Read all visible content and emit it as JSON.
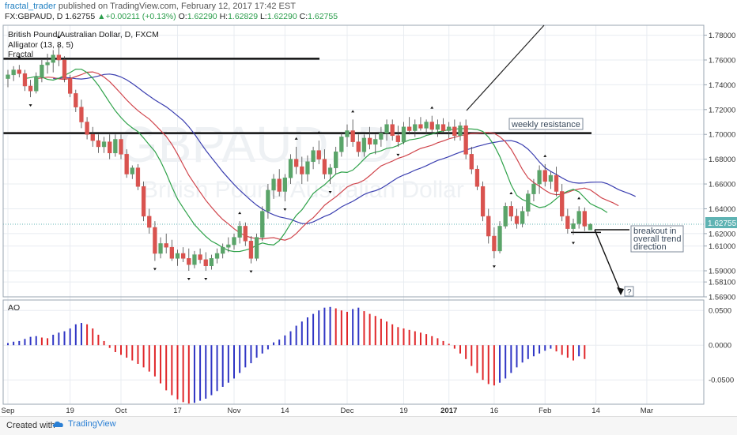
{
  "header": {
    "author": "fractal_trader",
    "published": " published on TradingView.com, February 12, 2017 17:42 EST",
    "symbol": "FX:GBPAUD, D",
    "last": "1.62755",
    "change": "+0.00211 (+0.13%)",
    "o_label": "O:",
    "o": "1.62290",
    "h_label": "H:",
    "h": "1.62829",
    "l_label": "L:",
    "l": "1.62290",
    "c_label": "C:",
    "c": "1.62755"
  },
  "legend": {
    "instrument": "British Pound/Australian Dollar, D, FXCM",
    "alligator": "Alligator (13, 8, 5)",
    "fractal": "Fractal",
    "ao": "AO"
  },
  "watermark": {
    "big": "GBPAUD, D",
    "small": "British Pound/Australian Dollar"
  },
  "annotations": {
    "weekly_resistance": "weekly resistance",
    "breakout_1": "breakout in",
    "breakout_2": "overall trend",
    "breakout_3": "direction",
    "question": "?"
  },
  "footer": {
    "created_with": "Created with",
    "brand": "TradingView"
  },
  "colors": {
    "bull": "#5aa469",
    "bear": "#d9534f",
    "jaw": "#3b3fb0",
    "teeth": "#d0454c",
    "lips": "#2fa24a",
    "ao_up": "#2f35c4",
    "ao_down": "#e0262a",
    "grid": "#e8ecf1",
    "price_line": "#5fb3b3"
  },
  "chart_data": [
    {
      "type": "candlestick",
      "title": "British Pound/Australian Dollar, D, FXCM",
      "ylim": [
        1.569,
        1.788
      ],
      "y_ticks": [
        "1.78000",
        "1.76000",
        "1.74000",
        "1.72000",
        "1.70000",
        "1.68000",
        "1.66000",
        "1.64000",
        "1.62000",
        "1.61000",
        "1.59000",
        "1.58100",
        "1.56900"
      ],
      "x_ticks": [
        "Sep",
        "19",
        "Oct",
        "17",
        "Nov",
        "14",
        "Dec",
        "19",
        "2017",
        "16",
        "Feb",
        "14",
        "Mar"
      ],
      "last_price": "1.62755",
      "horizontal_levels": [
        1.761,
        1.701,
        1.621
      ],
      "ohlc": [
        [
          1.745,
          1.752,
          1.738,
          1.748
        ],
        [
          1.748,
          1.755,
          1.743,
          1.752
        ],
        [
          1.752,
          1.756,
          1.746,
          1.749
        ],
        [
          1.749,
          1.752,
          1.735,
          1.739
        ],
        [
          1.739,
          1.744,
          1.73,
          1.735
        ],
        [
          1.735,
          1.75,
          1.733,
          1.746
        ],
        [
          1.746,
          1.76,
          1.742,
          1.756
        ],
        [
          1.756,
          1.765,
          1.749,
          1.758
        ],
        [
          1.758,
          1.768,
          1.75,
          1.764
        ],
        [
          1.764,
          1.772,
          1.755,
          1.76
        ],
        [
          1.76,
          1.763,
          1.742,
          1.745
        ],
        [
          1.745,
          1.748,
          1.73,
          1.733
        ],
        [
          1.733,
          1.736,
          1.718,
          1.722
        ],
        [
          1.722,
          1.728,
          1.705,
          1.71
        ],
        [
          1.71,
          1.714,
          1.696,
          1.7
        ],
        [
          1.7,
          1.706,
          1.69,
          1.695
        ],
        [
          1.695,
          1.7,
          1.685,
          1.69
        ],
        [
          1.69,
          1.698,
          1.685,
          1.694
        ],
        [
          1.694,
          1.7,
          1.68,
          1.685
        ],
        [
          1.685,
          1.7,
          1.682,
          1.696
        ],
        [
          1.696,
          1.7,
          1.68,
          1.684
        ],
        [
          1.684,
          1.688,
          1.665,
          1.668
        ],
        [
          1.668,
          1.675,
          1.664,
          1.673
        ],
        [
          1.673,
          1.676,
          1.655,
          1.658
        ],
        [
          1.658,
          1.662,
          1.63,
          1.634
        ],
        [
          1.634,
          1.64,
          1.62,
          1.625
        ],
        [
          1.625,
          1.63,
          1.598,
          1.604
        ],
        [
          1.604,
          1.617,
          1.6,
          1.612
        ],
        [
          1.612,
          1.62,
          1.604,
          1.609
        ],
        [
          1.609,
          1.615,
          1.598,
          1.6
        ],
        [
          1.6,
          1.607,
          1.594,
          1.604
        ],
        [
          1.604,
          1.609,
          1.597,
          1.6
        ],
        [
          1.6,
          1.608,
          1.59,
          1.595
        ],
        [
          1.595,
          1.606,
          1.592,
          1.603
        ],
        [
          1.603,
          1.608,
          1.596,
          1.599
        ],
        [
          1.599,
          1.605,
          1.59,
          1.594
        ],
        [
          1.594,
          1.603,
          1.591,
          1.6
        ],
        [
          1.6,
          1.608,
          1.596,
          1.604
        ],
        [
          1.604,
          1.612,
          1.6,
          1.609
        ],
        [
          1.609,
          1.617,
          1.605,
          1.611
        ],
        [
          1.611,
          1.62,
          1.607,
          1.617
        ],
        [
          1.617,
          1.63,
          1.612,
          1.626
        ],
        [
          1.626,
          1.629,
          1.61,
          1.614
        ],
        [
          1.614,
          1.618,
          1.596,
          1.6
        ],
        [
          1.6,
          1.62,
          1.598,
          1.617
        ],
        [
          1.617,
          1.642,
          1.614,
          1.638
        ],
        [
          1.638,
          1.66,
          1.632,
          1.655
        ],
        [
          1.655,
          1.668,
          1.648,
          1.664
        ],
        [
          1.664,
          1.672,
          1.65,
          1.654
        ],
        [
          1.654,
          1.668,
          1.646,
          1.665
        ],
        [
          1.665,
          1.684,
          1.66,
          1.68
        ],
        [
          1.68,
          1.69,
          1.668,
          1.674
        ],
        [
          1.674,
          1.682,
          1.66,
          1.668
        ],
        [
          1.668,
          1.683,
          1.662,
          1.678
        ],
        [
          1.678,
          1.69,
          1.672,
          1.687
        ],
        [
          1.687,
          1.695,
          1.676,
          1.68
        ],
        [
          1.68,
          1.688,
          1.664,
          1.668
        ],
        [
          1.668,
          1.676,
          1.66,
          1.673
        ],
        [
          1.673,
          1.69,
          1.668,
          1.686
        ],
        [
          1.686,
          1.702,
          1.682,
          1.698
        ],
        [
          1.698,
          1.708,
          1.69,
          1.703
        ],
        [
          1.703,
          1.712,
          1.69,
          1.694
        ],
        [
          1.694,
          1.7,
          1.682,
          1.686
        ],
        [
          1.686,
          1.7,
          1.682,
          1.697
        ],
        [
          1.697,
          1.706,
          1.688,
          1.692
        ],
        [
          1.692,
          1.7,
          1.684,
          1.696
        ],
        [
          1.696,
          1.706,
          1.69,
          1.701
        ],
        [
          1.701,
          1.712,
          1.695,
          1.708
        ],
        [
          1.708,
          1.712,
          1.695,
          1.699
        ],
        [
          1.699,
          1.707,
          1.69,
          1.694
        ],
        [
          1.694,
          1.71,
          1.692,
          1.706
        ],
        [
          1.706,
          1.714,
          1.7,
          1.703
        ],
        [
          1.703,
          1.712,
          1.698,
          1.708
        ],
        [
          1.708,
          1.714,
          1.703,
          1.705
        ],
        [
          1.705,
          1.712,
          1.7,
          1.71
        ],
        [
          1.71,
          1.715,
          1.702,
          1.704
        ],
        [
          1.704,
          1.712,
          1.698,
          1.708
        ],
        [
          1.708,
          1.713,
          1.702,
          1.703
        ],
        [
          1.703,
          1.71,
          1.697,
          1.706
        ],
        [
          1.706,
          1.712,
          1.695,
          1.699
        ],
        [
          1.699,
          1.71,
          1.695,
          1.707
        ],
        [
          1.707,
          1.712,
          1.68,
          1.684
        ],
        [
          1.684,
          1.69,
          1.668,
          1.672
        ],
        [
          1.672,
          1.675,
          1.655,
          1.658
        ],
        [
          1.658,
          1.662,
          1.63,
          1.634
        ],
        [
          1.634,
          1.64,
          1.612,
          1.618
        ],
        [
          1.618,
          1.625,
          1.6,
          1.606
        ],
        [
          1.606,
          1.63,
          1.604,
          1.626
        ],
        [
          1.626,
          1.645,
          1.624,
          1.642
        ],
        [
          1.642,
          1.646,
          1.63,
          1.634
        ],
        [
          1.634,
          1.64,
          1.624,
          1.628
        ],
        [
          1.628,
          1.642,
          1.625,
          1.638
        ],
        [
          1.638,
          1.655,
          1.634,
          1.652
        ],
        [
          1.652,
          1.664,
          1.646,
          1.66
        ],
        [
          1.66,
          1.675,
          1.652,
          1.671
        ],
        [
          1.671,
          1.676,
          1.658,
          1.662
        ],
        [
          1.662,
          1.67,
          1.656,
          1.667
        ],
        [
          1.667,
          1.674,
          1.65,
          1.654
        ],
        [
          1.654,
          1.66,
          1.63,
          1.634
        ],
        [
          1.634,
          1.64,
          1.62,
          1.624
        ],
        [
          1.624,
          1.632,
          1.619,
          1.628
        ],
        [
          1.628,
          1.642,
          1.624,
          1.638
        ],
        [
          1.638,
          1.641,
          1.622,
          1.626
        ],
        [
          1.6229,
          1.62829,
          1.6229,
          1.62755
        ]
      ]
    },
    {
      "type": "bar",
      "title": "AO",
      "ylim": [
        -0.085,
        0.065
      ],
      "y_ticks": [
        "0.0500",
        "0.0000",
        "-0.0500"
      ],
      "values": [
        0.003,
        0.005,
        0.006,
        0.009,
        0.012,
        0.013,
        0.011,
        0.01,
        0.015,
        0.018,
        0.02,
        0.024,
        0.03,
        0.032,
        0.03,
        0.024,
        0.015,
        0.006,
        -0.004,
        -0.01,
        -0.014,
        -0.018,
        -0.022,
        -0.027,
        -0.032,
        -0.038,
        -0.045,
        -0.055,
        -0.065,
        -0.072,
        -0.078,
        -0.082,
        -0.084,
        -0.083,
        -0.08,
        -0.077,
        -0.072,
        -0.066,
        -0.06,
        -0.054,
        -0.048,
        -0.04,
        -0.032,
        -0.026,
        -0.018,
        -0.012,
        -0.006,
        0.004,
        0.008,
        0.014,
        0.02,
        0.028,
        0.034,
        0.04,
        0.045,
        0.05,
        0.054,
        0.055,
        0.053,
        0.05,
        0.048,
        0.052,
        0.054,
        0.049,
        0.045,
        0.042,
        0.038,
        0.034,
        0.03,
        0.026,
        0.024,
        0.022,
        0.02,
        0.018,
        0.016,
        0.013,
        0.01,
        0.006,
        0.002,
        -0.005,
        -0.012,
        -0.02,
        -0.03,
        -0.04,
        -0.05,
        -0.056,
        -0.058,
        -0.054,
        -0.048,
        -0.04,
        -0.032,
        -0.025,
        -0.02,
        -0.016,
        -0.012,
        -0.008,
        -0.005,
        -0.009,
        -0.014,
        -0.018,
        -0.022,
        -0.016,
        -0.02
      ]
    }
  ]
}
